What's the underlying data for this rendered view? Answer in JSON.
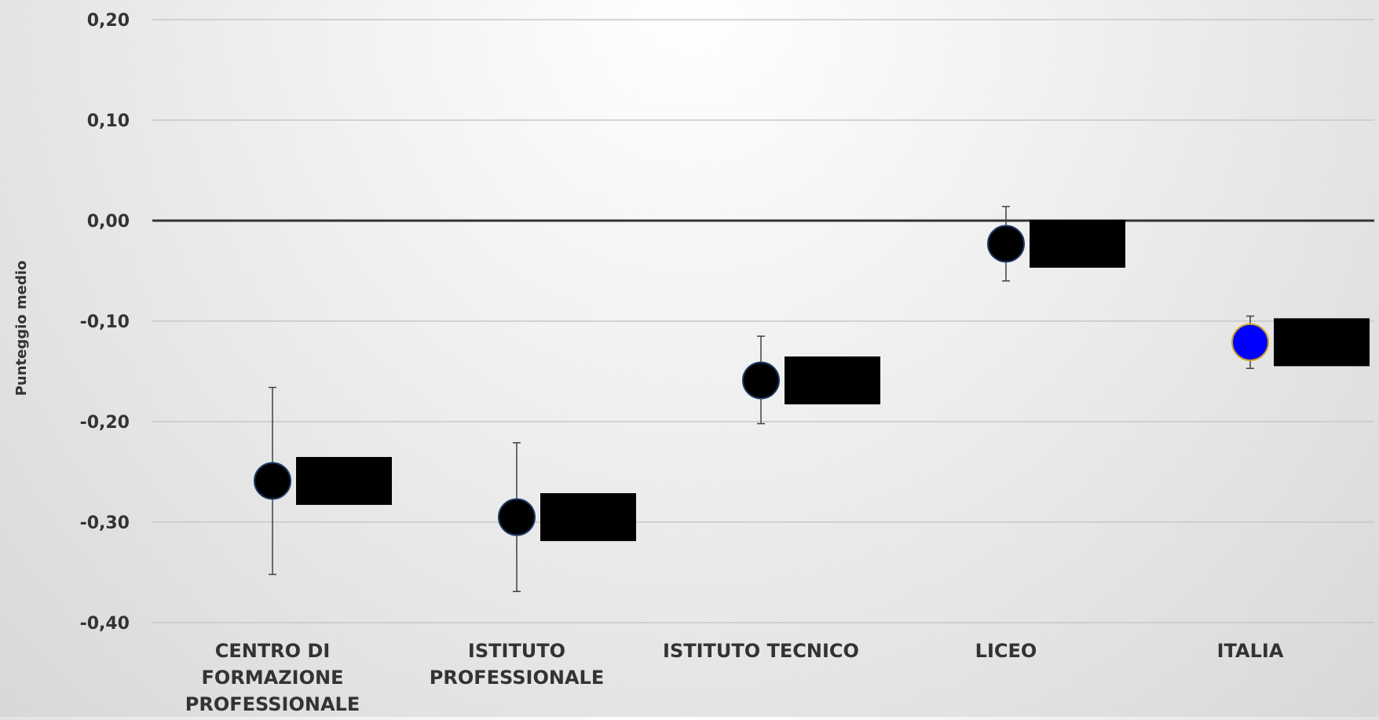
{
  "chart_data": {
    "type": "scatter",
    "title": "",
    "xlabel": "",
    "ylabel": "Punteggio medio",
    "ylim": [
      -0.4,
      0.2
    ],
    "yticks": [
      {
        "value": 0.2,
        "label": "0,20"
      },
      {
        "value": 0.1,
        "label": "0,10"
      },
      {
        "value": 0.0,
        "label": "0,00"
      },
      {
        "value": -0.1,
        "label": "-0,10"
      },
      {
        "value": -0.2,
        "label": "-0,20"
      },
      {
        "value": -0.3,
        "label": "-0,30"
      },
      {
        "value": -0.4,
        "label": "-0,40"
      }
    ],
    "grid": true,
    "categories": [
      [
        "CENTRO DI",
        "FORMAZIONE",
        "PROFESSIONALE"
      ],
      [
        "ISTITUTO",
        "PROFESSIONALE"
      ],
      [
        "ISTITUTO TECNICO"
      ],
      [
        "LICEO"
      ],
      [
        "ITALIA"
      ]
    ],
    "values": [
      -0.259,
      -0.295,
      -0.159,
      -0.023,
      -0.121
    ],
    "error_low": [
      -0.352,
      -0.369,
      -0.202,
      -0.06,
      -0.147
    ],
    "error_high": [
      -0.166,
      -0.221,
      -0.115,
      0.014,
      -0.095
    ],
    "marker_colors": [
      "#000000",
      "#000000",
      "#000000",
      "#000000",
      "#0000ff"
    ],
    "marker_edge_colors": [
      "#1f3864",
      "#1f3864",
      "#1f3864",
      "#1f3864",
      "#c9a227"
    ],
    "label_box_color": "#000000",
    "zero_line_color": "#333333"
  }
}
